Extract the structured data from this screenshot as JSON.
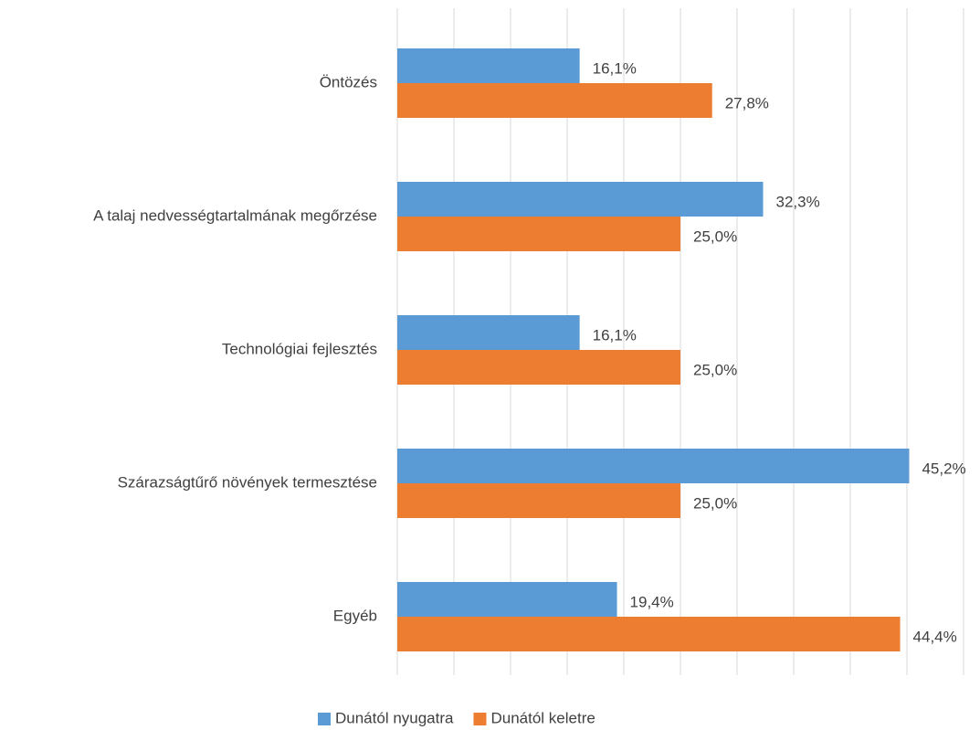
{
  "chart_data": {
    "type": "hbar",
    "categories": [
      "Öntözés",
      "A talaj nedvességtartalmának megőrzése",
      "Technológiai fejlesztés",
      "Szárazságtűrő növények termesztése",
      "Egyéb"
    ],
    "series": [
      {
        "name": "Dunától nyugatra",
        "color": "#5b9bd5",
        "values": [
          16.1,
          32.3,
          16.1,
          45.2,
          19.4
        ],
        "value_labels": [
          "16,1%",
          "32,3%",
          "16,1%",
          "45,2%",
          "19,4%"
        ]
      },
      {
        "name": "Dunától keletre",
        "color": "#ed7d31",
        "values": [
          27.8,
          25.0,
          25.0,
          25.0,
          44.4
        ],
        "value_labels": [
          "27,8%",
          "25,0%",
          "25,0%",
          "25,0%",
          "44,4%"
        ]
      }
    ],
    "xlim": [
      0,
      50
    ],
    "xticks": [
      0,
      5,
      10,
      15,
      20,
      25,
      30,
      35,
      40,
      45,
      50
    ],
    "grid": true,
    "legend": "bottom"
  }
}
